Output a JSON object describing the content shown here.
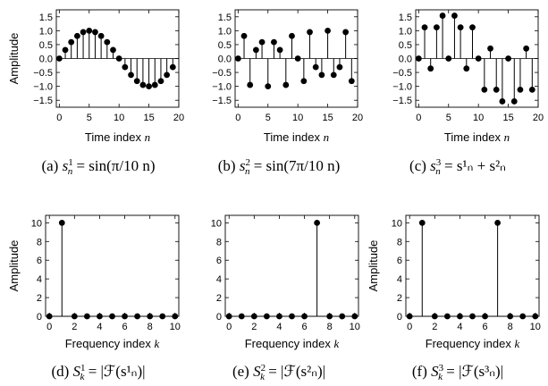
{
  "chart_data": [
    {
      "id": "a",
      "type": "stem",
      "caption": "(a) s¹ₙ = sin(π/10 n)",
      "caption_parts": {
        "prefix": "(a) ",
        "sym": "s",
        "sup": "1",
        "sub": "n",
        "rhs": " = sin(π/10 n)"
      },
      "xlabel": "Time index",
      "xvar": "n",
      "ylabel": "Amplitude",
      "xlim": [
        -0.5,
        20
      ],
      "ylim": [
        -1.75,
        1.75
      ],
      "xticks": [
        0,
        5,
        10,
        15,
        20
      ],
      "yticks": [
        -1.5,
        -1.0,
        -0.5,
        0.0,
        0.5,
        1.0,
        1.5
      ],
      "ytick_labels": [
        "−1.5",
        "−1.0",
        "−0.5",
        "0.0",
        "0.5",
        "1.0",
        "1.5"
      ],
      "x": [
        0,
        1,
        2,
        3,
        4,
        5,
        6,
        7,
        8,
        9,
        10,
        11,
        12,
        13,
        14,
        15,
        16,
        17,
        18,
        19
      ],
      "y": [
        0.0,
        0.31,
        0.59,
        0.81,
        0.95,
        1.0,
        0.95,
        0.81,
        0.59,
        0.31,
        0.0,
        -0.31,
        -0.59,
        -0.81,
        -0.95,
        -1.0,
        -0.95,
        -0.81,
        -0.59,
        -0.31
      ]
    },
    {
      "id": "b",
      "type": "stem",
      "caption": "(b) s²ₙ = sin(7π/10 n)",
      "caption_parts": {
        "prefix": "(b) ",
        "sym": "s",
        "sup": "2",
        "sub": "n",
        "rhs": " = sin(7π/10 n)"
      },
      "xlabel": "Time index",
      "xvar": "n",
      "ylabel": "",
      "xlim": [
        -0.5,
        20
      ],
      "ylim": [
        -1.75,
        1.75
      ],
      "xticks": [
        0,
        5,
        10,
        15,
        20
      ],
      "yticks": [
        -1.5,
        -1.0,
        -0.5,
        0.0,
        0.5,
        1.0,
        1.5
      ],
      "ytick_labels": [
        "−1.5",
        "−1.0",
        "−0.5",
        "0.0",
        "0.5",
        "1.0",
        "1.5"
      ],
      "x": [
        0,
        1,
        2,
        3,
        4,
        5,
        6,
        7,
        8,
        9,
        10,
        11,
        12,
        13,
        14,
        15,
        16,
        17,
        18,
        19
      ],
      "y": [
        0.0,
        0.81,
        -0.95,
        0.31,
        0.59,
        -1.0,
        0.59,
        0.31,
        -0.95,
        0.81,
        0.0,
        -0.81,
        0.95,
        -0.31,
        -0.59,
        1.0,
        -0.59,
        -0.31,
        0.95,
        -0.81
      ]
    },
    {
      "id": "c",
      "type": "stem",
      "caption": "(c) s³ₙ = s¹ₙ + s²ₙ",
      "caption_parts": {
        "prefix": "(c) ",
        "sym": "s",
        "sup": "3",
        "sub": "n",
        "rhs": " = s¹ₙ + s²ₙ"
      },
      "xlabel": "Time index",
      "xvar": "n",
      "ylabel": "",
      "xlim": [
        -0.5,
        20
      ],
      "ylim": [
        -1.75,
        1.75
      ],
      "xticks": [
        0,
        5,
        10,
        15,
        20
      ],
      "yticks": [
        -1.5,
        -1.0,
        -0.5,
        0.0,
        0.5,
        1.0,
        1.5
      ],
      "ytick_labels": [
        "−1.5",
        "−1.0",
        "−0.5",
        "0.0",
        "0.5",
        "1.0",
        "1.5"
      ],
      "x": [
        0,
        1,
        2,
        3,
        4,
        5,
        6,
        7,
        8,
        9,
        10,
        11,
        12,
        13,
        14,
        15,
        16,
        17,
        18,
        19
      ],
      "y": [
        0.0,
        1.12,
        -0.36,
        1.12,
        1.54,
        0.0,
        1.54,
        1.12,
        -0.36,
        1.12,
        0.0,
        -1.12,
        0.36,
        -1.12,
        -1.54,
        0.0,
        -1.54,
        -1.12,
        0.36,
        -1.12
      ]
    },
    {
      "id": "d",
      "type": "stem",
      "caption": "(d) S¹ₖ = |ℱ(s¹ₙ)|",
      "caption_parts": {
        "prefix": "(d) ",
        "sym": "S",
        "sup": "1",
        "sub": "k",
        "rhs": " = |ℱ(s¹ₙ)|"
      },
      "xlabel": "Frequency index",
      "xvar": "k",
      "ylabel": "Amplitude",
      "xlim": [
        -0.3,
        10.3
      ],
      "ylim": [
        0,
        10.8
      ],
      "xticks": [
        0,
        2,
        4,
        6,
        8,
        10
      ],
      "yticks": [
        0,
        2,
        4,
        6,
        8,
        10
      ],
      "ytick_labels": [
        "0",
        "2",
        "4",
        "6",
        "8",
        "10"
      ],
      "x": [
        0,
        1,
        2,
        3,
        4,
        5,
        6,
        7,
        8,
        9,
        10
      ],
      "y": [
        0,
        10,
        0,
        0,
        0,
        0,
        0,
        0,
        0,
        0,
        0
      ]
    },
    {
      "id": "e",
      "type": "stem",
      "caption": "(e) S²ₖ = |ℱ(s²ₙ)|",
      "caption_parts": {
        "prefix": "(e) ",
        "sym": "S",
        "sup": "2",
        "sub": "k",
        "rhs": " = |ℱ(s²ₙ)|"
      },
      "xlabel": "Frequency index",
      "xvar": "k",
      "ylabel": "",
      "xlim": [
        -0.3,
        10.3
      ],
      "ylim": [
        0,
        10.8
      ],
      "xticks": [
        0,
        2,
        4,
        6,
        8,
        10
      ],
      "yticks": [
        0,
        2,
        4,
        6,
        8,
        10
      ],
      "ytick_labels": [
        "0",
        "2",
        "4",
        "6",
        "8",
        "10"
      ],
      "x": [
        0,
        1,
        2,
        3,
        4,
        5,
        6,
        7,
        8,
        9,
        10
      ],
      "y": [
        0,
        0,
        0,
        0,
        0,
        0,
        0,
        10,
        0,
        0,
        0
      ]
    },
    {
      "id": "f",
      "type": "stem",
      "caption": "(f) S³ₖ = |ℱ(s³ₙ)|",
      "caption_parts": {
        "prefix": "(f) ",
        "sym": "S",
        "sup": "3",
        "sub": "k",
        "rhs": " = |ℱ(s³ₙ)|"
      },
      "xlabel": "Frequency index",
      "xvar": "k",
      "ylabel": "Amplitude",
      "xlim": [
        -0.3,
        10.3
      ],
      "ylim": [
        0,
        10.8
      ],
      "xticks": [
        0,
        2,
        4,
        6,
        8,
        10
      ],
      "yticks": [
        0,
        2,
        4,
        6,
        8,
        10
      ],
      "ytick_labels": [
        "0",
        "2",
        "4",
        "6",
        "8",
        "10"
      ],
      "x": [
        0,
        1,
        2,
        3,
        4,
        5,
        6,
        7,
        8,
        9,
        10
      ],
      "y": [
        0,
        10,
        0,
        0,
        0,
        0,
        0,
        10,
        0,
        0,
        0
      ]
    }
  ],
  "style": {
    "color": "#000000",
    "background": "#ffffff"
  }
}
